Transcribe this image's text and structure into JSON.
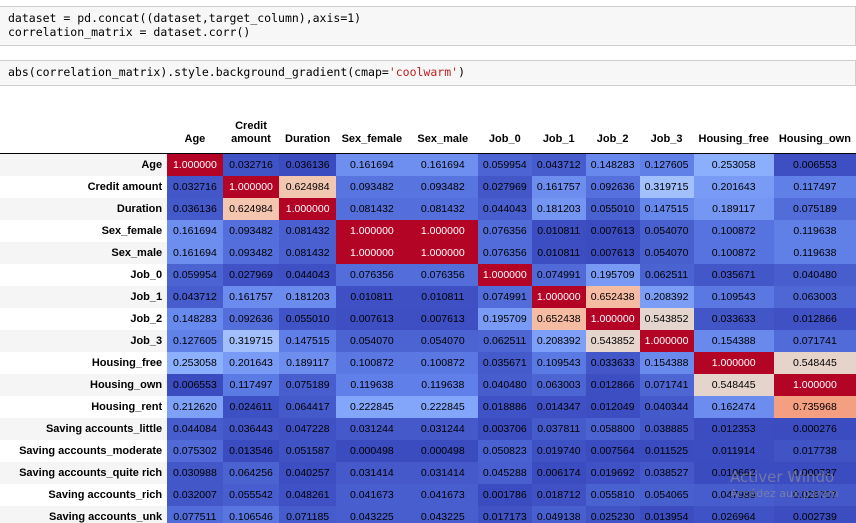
{
  "code_cells": {
    "cell1_line1": "dataset = pd.concat((dataset,target_column),axis=1)",
    "cell1_line2": "correlation_matrix = dataset.corr()",
    "cell2_prefix": "abs(correlation_matrix).style.background_gradient(cmap=",
    "cell2_string": "'coolwarm'",
    "cell2_suffix": ")"
  },
  "table": {
    "columns": [
      "Age",
      "Credit amount",
      "Duration",
      "Sex_female",
      "Sex_male",
      "Job_0",
      "Job_1",
      "Job_2",
      "Job_3",
      "Housing_free",
      "Housing_own"
    ],
    "rows": [
      {
        "label": "Age",
        "values": [
          "1.000000",
          "0.032716",
          "0.036136",
          "0.161694",
          "0.161694",
          "0.059954",
          "0.043712",
          "0.148283",
          "0.127605",
          "0.253058",
          "0.006553"
        ]
      },
      {
        "label": "Credit amount",
        "values": [
          "0.032716",
          "1.000000",
          "0.624984",
          "0.093482",
          "0.093482",
          "0.027969",
          "0.161757",
          "0.092636",
          "0.319715",
          "0.201643",
          "0.117497"
        ]
      },
      {
        "label": "Duration",
        "values": [
          "0.036136",
          "0.624984",
          "1.000000",
          "0.081432",
          "0.081432",
          "0.044043",
          "0.181203",
          "0.055010",
          "0.147515",
          "0.189117",
          "0.075189"
        ]
      },
      {
        "label": "Sex_female",
        "values": [
          "0.161694",
          "0.093482",
          "0.081432",
          "1.000000",
          "1.000000",
          "0.076356",
          "0.010811",
          "0.007613",
          "0.054070",
          "0.100872",
          "0.119638"
        ]
      },
      {
        "label": "Sex_male",
        "values": [
          "0.161694",
          "0.093482",
          "0.081432",
          "1.000000",
          "1.000000",
          "0.076356",
          "0.010811",
          "0.007613",
          "0.054070",
          "0.100872",
          "0.119638"
        ]
      },
      {
        "label": "Job_0",
        "values": [
          "0.059954",
          "0.027969",
          "0.044043",
          "0.076356",
          "0.076356",
          "1.000000",
          "0.074991",
          "0.195709",
          "0.062511",
          "0.035671",
          "0.040480"
        ]
      },
      {
        "label": "Job_1",
        "values": [
          "0.043712",
          "0.161757",
          "0.181203",
          "0.010811",
          "0.010811",
          "0.074991",
          "1.000000",
          "0.652438",
          "0.208392",
          "0.109543",
          "0.063003"
        ]
      },
      {
        "label": "Job_2",
        "values": [
          "0.148283",
          "0.092636",
          "0.055010",
          "0.007613",
          "0.007613",
          "0.195709",
          "0.652438",
          "1.000000",
          "0.543852",
          "0.033633",
          "0.012866"
        ]
      },
      {
        "label": "Job_3",
        "values": [
          "0.127605",
          "0.319715",
          "0.147515",
          "0.054070",
          "0.054070",
          "0.062511",
          "0.208392",
          "0.543852",
          "1.000000",
          "0.154388",
          "0.071741"
        ]
      },
      {
        "label": "Housing_free",
        "values": [
          "0.253058",
          "0.201643",
          "0.189117",
          "0.100872",
          "0.100872",
          "0.035671",
          "0.109543",
          "0.033633",
          "0.154388",
          "1.000000",
          "0.548445"
        ]
      },
      {
        "label": "Housing_own",
        "values": [
          "0.006553",
          "0.117497",
          "0.075189",
          "0.119638",
          "0.119638",
          "0.040480",
          "0.063003",
          "0.012866",
          "0.071741",
          "0.548445",
          "1.000000"
        ]
      },
      {
        "label": "Housing_rent",
        "values": [
          "0.212620",
          "0.024611",
          "0.064417",
          "0.222845",
          "0.222845",
          "0.018886",
          "0.014347",
          "0.012049",
          "0.040344",
          "0.162474",
          "0.735968"
        ]
      },
      {
        "label": "Saving accounts_little",
        "values": [
          "0.044084",
          "0.036443",
          "0.047228",
          "0.031244",
          "0.031244",
          "0.003706",
          "0.037811",
          "0.058800",
          "0.038885",
          "0.012353",
          "0.000276"
        ]
      },
      {
        "label": "Saving accounts_moderate",
        "values": [
          "0.075302",
          "0.013546",
          "0.051587",
          "0.000498",
          "0.000498",
          "0.050823",
          "0.019740",
          "0.007564",
          "0.011525",
          "0.011914",
          "0.017738"
        ]
      },
      {
        "label": "Saving accounts_quite rich",
        "values": [
          "0.030988",
          "0.064256",
          "0.040257",
          "0.031414",
          "0.031414",
          "0.045288",
          "0.006174",
          "0.019692",
          "0.038527",
          "0.010662",
          "0.000737"
        ]
      },
      {
        "label": "Saving accounts_rich",
        "values": [
          "0.032007",
          "0.055542",
          "0.048261",
          "0.041673",
          "0.041673",
          "0.001786",
          "0.018712",
          "0.055810",
          "0.054065",
          "0.047989",
          "0.028707"
        ]
      },
      {
        "label": "Saving accounts_unk",
        "values": [
          "0.077511",
          "0.106546",
          "0.071185",
          "0.043225",
          "0.043225",
          "0.017173",
          "0.049138",
          "0.025230",
          "0.013954",
          "0.026964",
          "0.002739"
        ]
      }
    ]
  },
  "watermark": {
    "line1": "Activer Windo",
    "line2": "Accédez aux param"
  }
}
